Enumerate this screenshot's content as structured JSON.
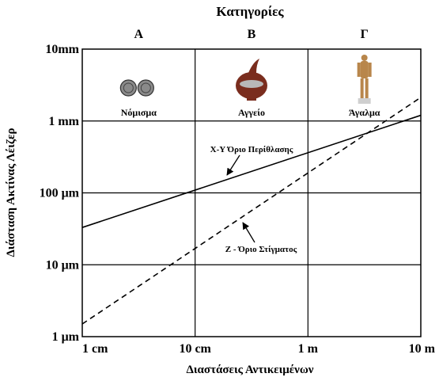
{
  "chart_data": {
    "type": "line",
    "title": "Κατηγορίες",
    "xlabel": "Διαστάσεις Αντικειμένων",
    "ylabel": "Διάσταση Ακτίνας Λέιζερ",
    "x_scale": "log",
    "y_scale": "log",
    "xlim_m": [
      0.01,
      10
    ],
    "ylim_m": [
      1e-06,
      0.01
    ],
    "x_ticks": [
      {
        "value": 0.01,
        "label": "1 cm"
      },
      {
        "value": 0.1,
        "label": "10 cm"
      },
      {
        "value": 1,
        "label": "1 m"
      },
      {
        "value": 10,
        "label": "10 m"
      }
    ],
    "y_ticks": [
      {
        "value": 0.01,
        "label": "10mm"
      },
      {
        "value": 0.001,
        "label": "1 mm"
      },
      {
        "value": 0.0001,
        "label": "100 μm"
      },
      {
        "value": 1e-05,
        "label": "10 μm"
      },
      {
        "value": 1e-06,
        "label": "1 μm"
      }
    ],
    "categories": [
      {
        "letter": "Α",
        "name": "Νόμισμα",
        "icon": "coins-icon"
      },
      {
        "letter": "Β",
        "name": "Αγγείο",
        "icon": "vase-icon"
      },
      {
        "letter": "Γ",
        "name": "Άγαλμα",
        "icon": "statue-icon"
      }
    ],
    "grid": true,
    "series": [
      {
        "name": "X-Y Όριο Περίθλασης",
        "style": "solid",
        "x": [
          0.01,
          10
        ],
        "y": [
          3.3e-05,
          0.0012
        ]
      },
      {
        "name": "Z - Όριο Στίγματος",
        "style": "dashed",
        "x": [
          0.01,
          10
        ],
        "y": [
          1.5e-06,
          0.00213
        ]
      }
    ],
    "annotations": [
      {
        "text": "X-Y Όριο Περίθλασης",
        "series": 0
      },
      {
        "text": "Z - Όριο Στίγματος",
        "series": 1
      }
    ]
  },
  "colors": {
    "line": "#000000",
    "vase": "#7a2d1e",
    "coin": "#8a8a8a",
    "statue": "#b8864b"
  }
}
